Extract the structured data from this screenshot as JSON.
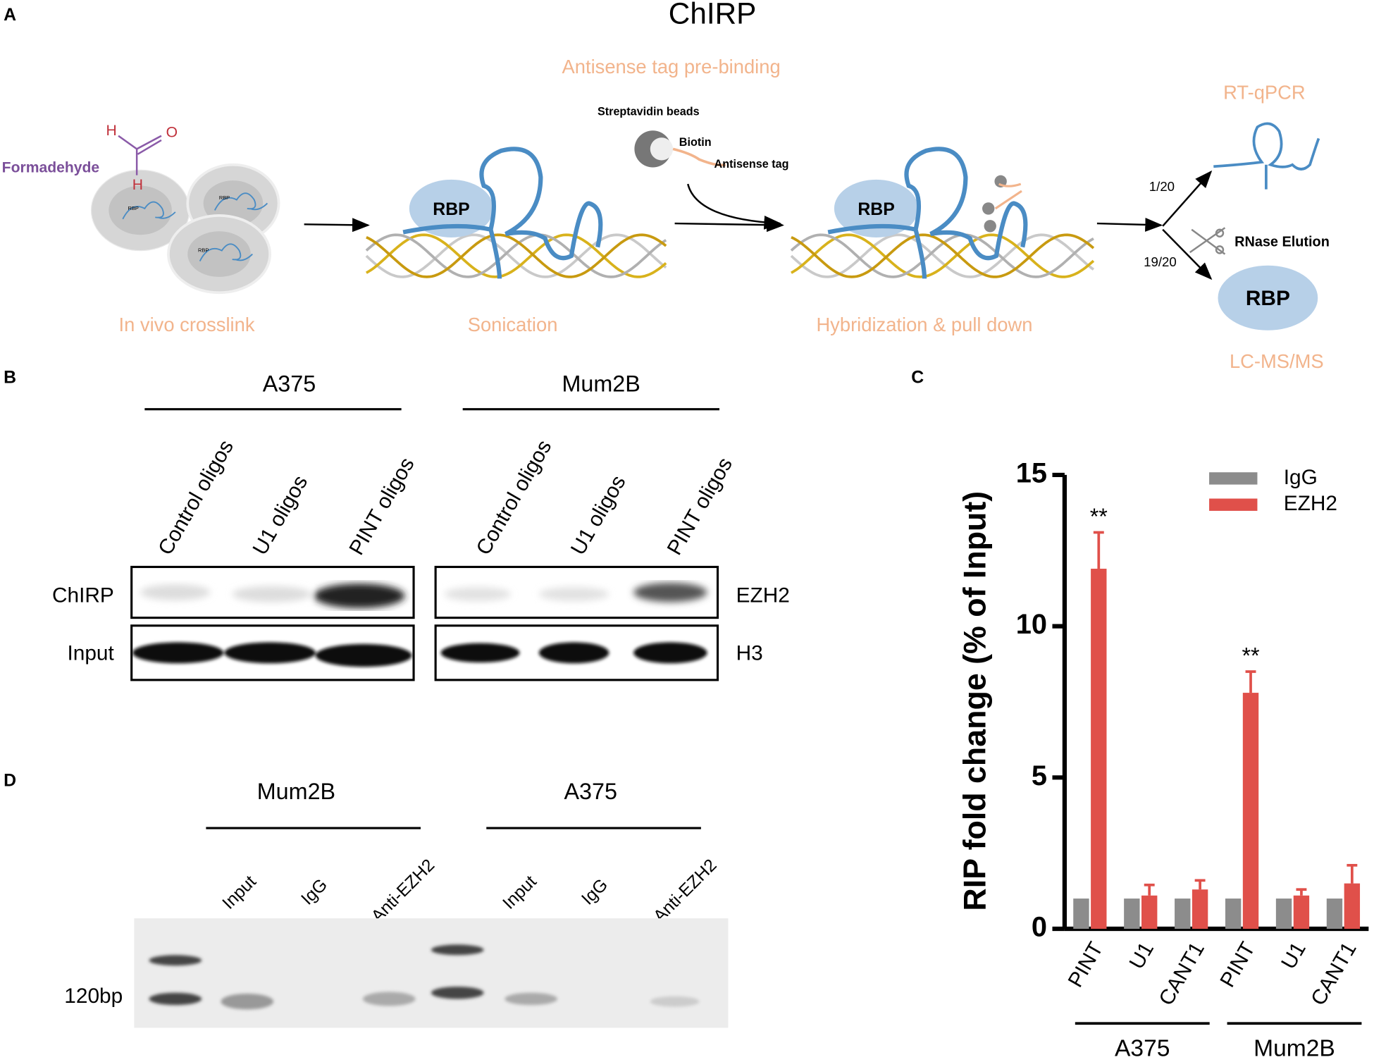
{
  "panel_a": {
    "label": "A",
    "title": "ChIRP",
    "prebinding": "Antisense tag pre-binding",
    "formaldehyde": "Formadehyde",
    "atoms": [
      "H",
      "O",
      "H"
    ],
    "cell_rbp": "RBP",
    "beads": "Streptavidin beads",
    "biotin": "Biotin",
    "antisense_tag": "Antisense tag",
    "rbp": "RBP",
    "fractions": [
      "1/20",
      "19/20"
    ],
    "elution": "RNase Elution",
    "outputs": [
      "RT-qPCR",
      "LC-MS/MS"
    ],
    "steps": [
      "In vivo crosslink",
      "Sonication",
      "Hybridization & pull down"
    ]
  },
  "panel_b": {
    "label": "B",
    "groups": [
      "A375",
      "Mum2B"
    ],
    "lanes": [
      "Control oligos",
      "U1 oligos",
      "PINT oligos"
    ],
    "rows": [
      "ChIRP",
      "Input"
    ],
    "targets": [
      "EZH2",
      "H3"
    ]
  },
  "panel_d": {
    "label": "D",
    "groups": [
      "Mum2B",
      "A375"
    ],
    "lanes": [
      "Input",
      "IgG",
      "Anti-EZH2"
    ],
    "marker": "120bp"
  },
  "chart_data": {
    "type": "bar",
    "label": "C",
    "y_label": "RIP fold change (% of Input)",
    "categories": [
      "PINT",
      "U1",
      "CANT1",
      "PINT",
      "U1",
      "CANT1"
    ],
    "groups": [
      {
        "name": "A375",
        "span": 3
      },
      {
        "name": "Mum2B",
        "span": 3
      }
    ],
    "series": [
      {
        "name": "IgG",
        "color": "#8c8c8c",
        "values": [
          1,
          1,
          1,
          1,
          1,
          1
        ]
      },
      {
        "name": "EZH2",
        "color": "#e0504a",
        "values": [
          11.9,
          1.1,
          1.3,
          7.8,
          1.1,
          1.5
        ],
        "errors": [
          1.2,
          0.35,
          0.3,
          0.7,
          0.2,
          0.6
        ],
        "significance": [
          "**",
          null,
          null,
          "**",
          null,
          null
        ]
      }
    ],
    "ylim": [
      0,
      15
    ],
    "yticks": [
      0,
      5,
      10,
      15
    ],
    "grid": false,
    "legend": "top-right"
  }
}
